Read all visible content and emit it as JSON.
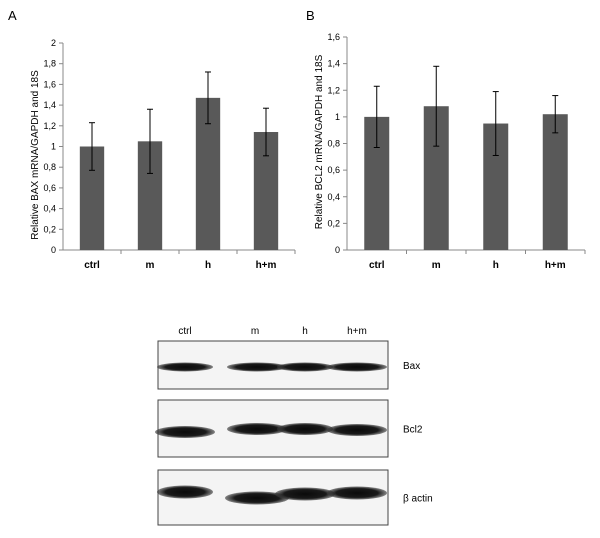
{
  "chart_data": [
    {
      "panel": "A",
      "type": "bar",
      "categories": [
        "ctrl",
        "m",
        "h",
        "h+m"
      ],
      "values": [
        1.0,
        1.05,
        1.47,
        1.14
      ],
      "errors": [
        0.23,
        0.31,
        0.25,
        0.23
      ],
      "ylabel": "Relative BAX mRNA/GAPDH and 18S",
      "ylim": [
        0,
        2
      ],
      "yticks": [
        "0",
        "0,2",
        "0,4",
        "0,6",
        "0,8",
        "1",
        "1,2",
        "1,4",
        "1,6",
        "1,8",
        "2"
      ],
      "grid": false,
      "bar_color": "#595959"
    },
    {
      "panel": "B",
      "type": "bar",
      "categories": [
        "ctrl",
        "m",
        "h",
        "h+m"
      ],
      "values": [
        1.0,
        1.08,
        0.95,
        1.02
      ],
      "errors": [
        0.23,
        0.3,
        0.24,
        0.14
      ],
      "ylabel": "Relative BCL2 mRNA/GAPDH and 18S",
      "ylim": [
        0,
        1.6
      ],
      "yticks": [
        "0",
        "0,2",
        "0,4",
        "0,6",
        "0,8",
        "1",
        "1,2",
        "1,4",
        "1,6"
      ],
      "grid": false,
      "bar_color": "#595959"
    }
  ],
  "blot": {
    "lanes": [
      "ctrl",
      "m",
      "h",
      "h+m"
    ],
    "bands": [
      "Bax",
      "Bcl2",
      "β actin"
    ]
  }
}
